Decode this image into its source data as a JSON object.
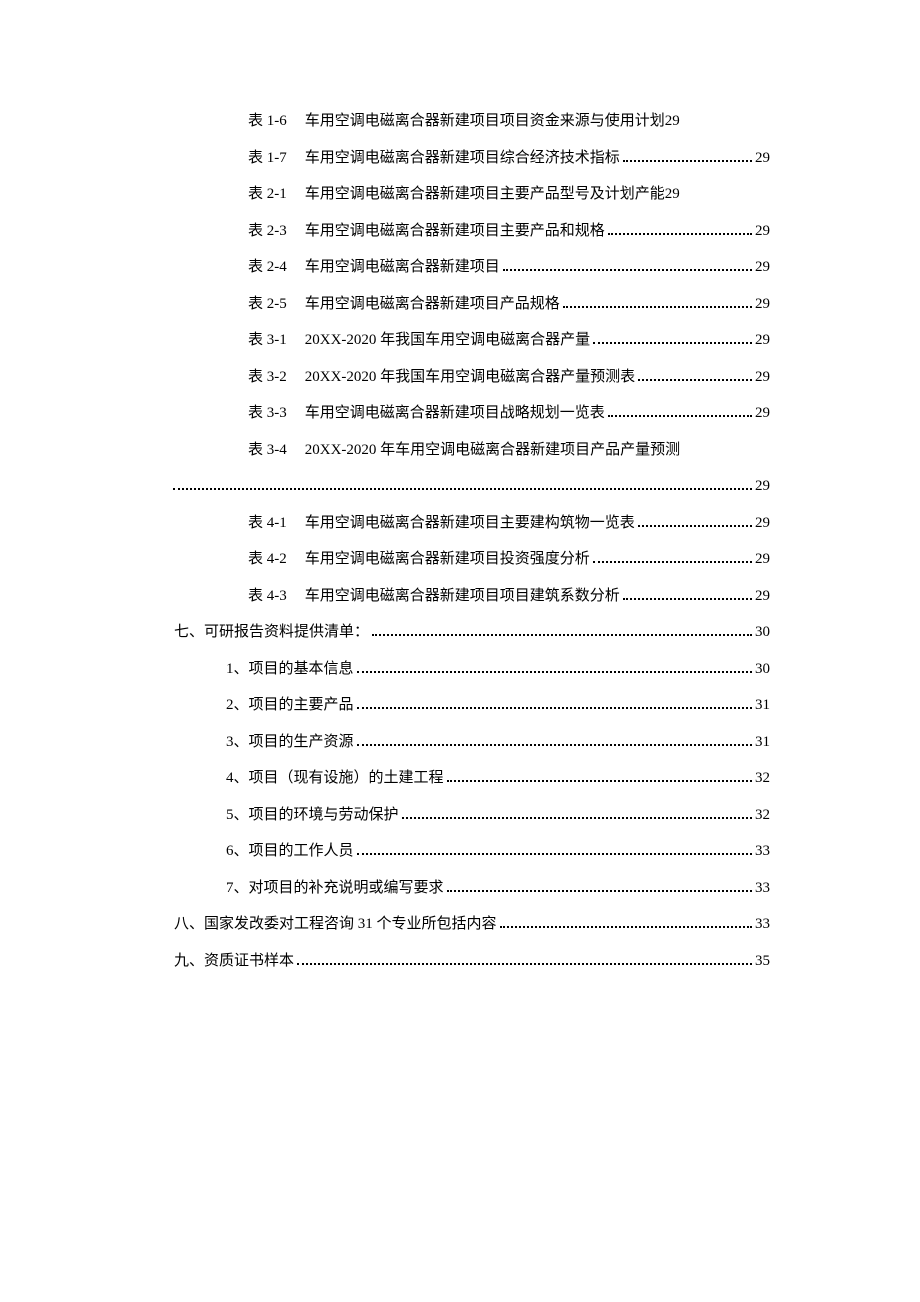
{
  "entries": [
    {
      "indent": 2,
      "prefix": "表 1-6",
      "title": "车用空调电磁离合器新建项目项目资金来源与使用计划",
      "page": "29",
      "noDots": true
    },
    {
      "indent": 2,
      "prefix": "表 1-7",
      "title": "车用空调电磁离合器新建项目综合经济技术指标",
      "page": "29"
    },
    {
      "indent": 2,
      "prefix": "表 2-1",
      "title": "车用空调电磁离合器新建项目主要产品型号及计划产能",
      "page": "29",
      "noDots": true
    },
    {
      "indent": 2,
      "prefix": "表 2-3",
      "title": "车用空调电磁离合器新建项目主要产品和规格",
      "page": "29"
    },
    {
      "indent": 2,
      "prefix": "表 2-4",
      "title": "车用空调电磁离合器新建项目",
      "page": "29"
    },
    {
      "indent": 2,
      "prefix": "表 2-5",
      "title": "车用空调电磁离合器新建项目产品规格",
      "page": "29"
    },
    {
      "indent": 2,
      "prefix": "表 3-1",
      "title": "20XX-2020 年我国车用空调电磁离合器产量 ",
      "page": "29"
    },
    {
      "indent": 2,
      "prefix": "表 3-2",
      "title": "20XX-2020 年我国车用空调电磁离合器产量预测表 ",
      "page": "29"
    },
    {
      "indent": 2,
      "prefix": "表 3-3",
      "title": "车用空调电磁离合器新建项目战略规划一览表",
      "page": "29"
    },
    {
      "indent": 2,
      "prefix": "表 3-4",
      "title": "20XX-2020 年车用空调电磁离合器新建项目产品产量预测",
      "page": "",
      "continuation": true,
      "contPage": "29"
    },
    {
      "indent": 2,
      "prefix": "表 4-1",
      "title": "车用空调电磁离合器新建项目主要建构筑物一览表",
      "page": "29"
    },
    {
      "indent": 2,
      "prefix": "表 4-2",
      "title": "车用空调电磁离合器新建项目投资强度分析",
      "page": "29"
    },
    {
      "indent": 2,
      "prefix": "表 4-3",
      "title": "车用空调电磁离合器新建项目项目建筑系数分析",
      "page": "29"
    },
    {
      "indent": 0,
      "prefix": "七、",
      "title": "可研报告资料提供清单：",
      "page": "30",
      "noGap": true
    },
    {
      "indent": 1,
      "prefix": "1、",
      "title": "项目的基本信息",
      "page": "30",
      "noGap": true
    },
    {
      "indent": 1,
      "prefix": "2、",
      "title": "项目的主要产品",
      "page": "31",
      "noGap": true
    },
    {
      "indent": 1,
      "prefix": "3、",
      "title": "项目的生产资源",
      "page": "31",
      "noGap": true
    },
    {
      "indent": 1,
      "prefix": "4、",
      "title": "项目（现有设施）的土建工程",
      "page": "32",
      "noGap": true
    },
    {
      "indent": 1,
      "prefix": "5、",
      "title": "项目的环境与劳动保护",
      "page": "32",
      "noGap": true
    },
    {
      "indent": 1,
      "prefix": "6、",
      "title": "项目的工作人员",
      "page": "33",
      "noGap": true
    },
    {
      "indent": 1,
      "prefix": "7、",
      "title": "对项目的补充说明或编写要求",
      "page": "33",
      "noGap": true
    },
    {
      "indent": 0,
      "prefix": "八、",
      "title": "国家发改委对工程咨询 31 个专业所包括内容",
      "page": "33",
      "noGap": true
    },
    {
      "indent": 0,
      "prefix": "九、 ",
      "title": "资质证书样本",
      "page": "35",
      "noGap": true
    }
  ],
  "style": {
    "text_color": "#000000",
    "background_color": "#ffffff",
    "font_size": 15,
    "font_family": "SimSun"
  }
}
